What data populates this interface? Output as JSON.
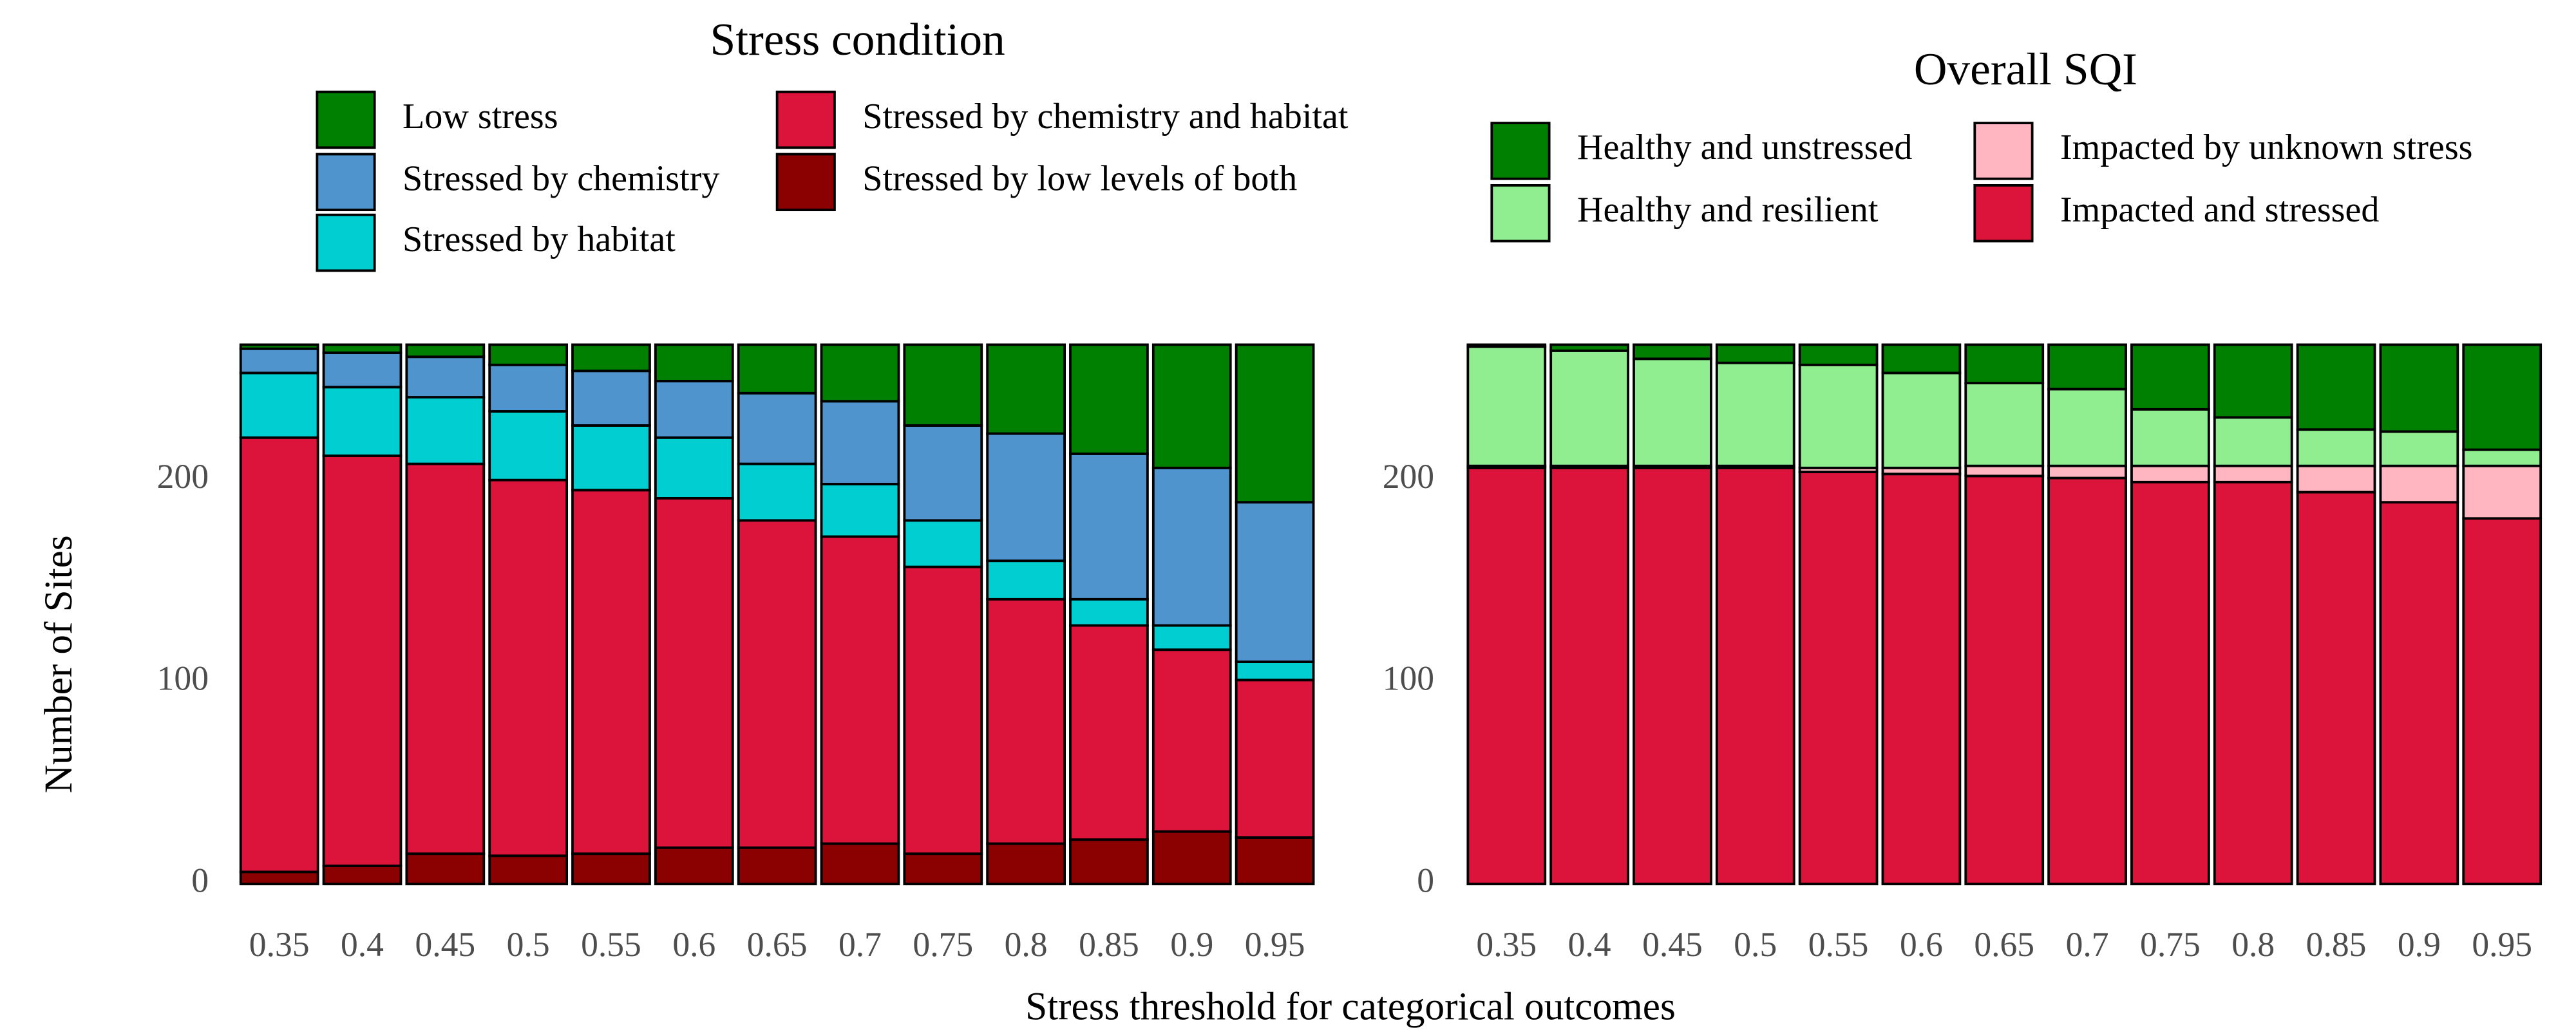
{
  "chart_data": [
    {
      "type": "stacked-bar",
      "title": "Stress condition",
      "ylabel": "Number of Sites",
      "xlabel": "Stress threshold for categorical outcomes",
      "categories": [
        "0.35",
        "0.4",
        "0.45",
        "0.5",
        "0.55",
        "0.6",
        "0.65",
        "0.7",
        "0.75",
        "0.8",
        "0.85",
        "0.9",
        "0.95"
      ],
      "ylim": [
        0,
        272
      ],
      "yticks": [
        0,
        100,
        200
      ],
      "series": [
        {
          "name": "Low stress",
          "color": "#008000",
          "values": [
            2,
            4,
            6,
            10,
            13,
            18,
            24,
            28,
            40,
            44,
            54,
            61,
            78
          ]
        },
        {
          "name": "Stressed by chemistry",
          "color": "#4f94cd",
          "values": [
            12,
            17,
            20,
            23,
            27,
            28,
            35,
            41,
            47,
            63,
            72,
            78,
            79
          ]
        },
        {
          "name": "Stressed by habitat",
          "color": "#00ced1",
          "values": [
            32,
            34,
            33,
            34,
            32,
            30,
            28,
            26,
            23,
            19,
            13,
            12,
            9
          ]
        },
        {
          "name": "Stressed by chemistry and habitat",
          "color": "#dc143c",
          "values": [
            215,
            203,
            193,
            186,
            180,
            173,
            162,
            152,
            142,
            121,
            106,
            90,
            78
          ]
        },
        {
          "name": "Stressed by low levels of both",
          "color": "#8b0000",
          "values": [
            6,
            9,
            15,
            14,
            15,
            18,
            18,
            20,
            15,
            20,
            22,
            26,
            23
          ]
        }
      ]
    },
    {
      "type": "stacked-bar",
      "title": "Overall SQI",
      "categories": [
        "0.35",
        "0.4",
        "0.45",
        "0.5",
        "0.55",
        "0.6",
        "0.65",
        "0.7",
        "0.75",
        "0.8",
        "0.85",
        "0.9",
        "0.95"
      ],
      "ylim": [
        0,
        272
      ],
      "yticks": [
        0,
        100,
        200
      ],
      "series": [
        {
          "name": "Healthy and unstressed",
          "color": "#008000",
          "values": [
            1,
            3,
            7,
            9,
            10,
            14,
            19,
            22,
            32,
            36,
            42,
            43,
            52
          ]
        },
        {
          "name": "Healthy and resilient",
          "color": "#90ee90",
          "values": [
            59,
            57,
            53,
            51,
            51,
            47,
            41,
            38,
            28,
            24,
            18,
            17,
            8
          ]
        },
        {
          "name": "Impacted by unknown stress",
          "color": "#ffb6c1",
          "values": [
            1,
            1,
            1,
            1,
            2,
            3,
            5,
            6,
            8,
            8,
            13,
            18,
            26
          ]
        },
        {
          "name": "Impacted and stressed",
          "color": "#dc143c",
          "values": [
            206,
            206,
            206,
            206,
            204,
            203,
            202,
            201,
            199,
            199,
            194,
            189,
            181
          ]
        }
      ]
    }
  ]
}
